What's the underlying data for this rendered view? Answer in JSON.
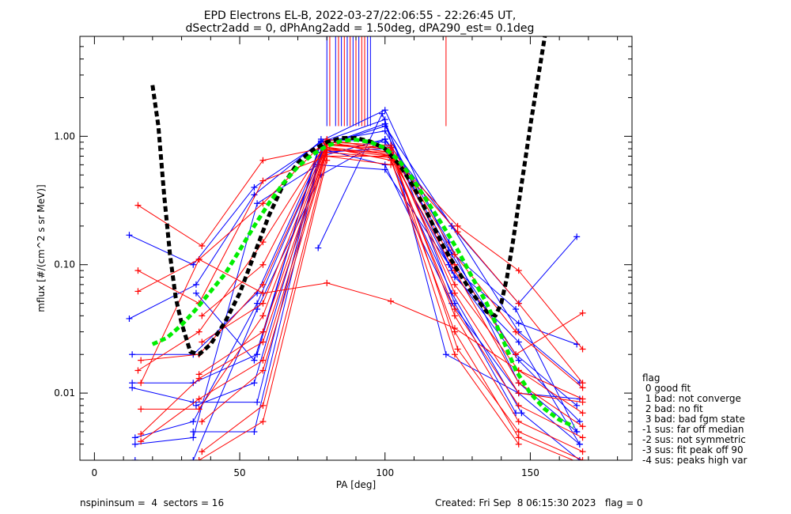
{
  "title_line1": "EPD Electrons EL-B, 2022-03-27/22:06:55 - 22:26:45 UT,",
  "title_line2": "dSectr2add = 0, dPhAng2add = 1.50deg, dPA290_est=   0.1deg",
  "footer": {
    "left": "nspininsum =  4  sectors = 16",
    "right": "Created: Fri Sep  8 06:15:30 2023   flag = 0"
  },
  "legend": {
    "title": "flag",
    "items": [
      " 0 good fit",
      " 1 bad: not converge",
      " 2 bad: no fit",
      " 3 bad: bad fgm state",
      "-1 sus: far off median",
      "-2 sus: not symmetric",
      "-3 sus: fit peak off 90",
      "-4 sus: peaks high var"
    ]
  },
  "chart_data": {
    "type": "line",
    "xlabel": "PA [deg]",
    "ylabel": "mflux [#/(cm^2 s sr MeV)]",
    "xlim": [
      -5,
      185
    ],
    "ylim": [
      0.003,
      6.0
    ],
    "ylog": true,
    "x_ticks": [
      0,
      50,
      100,
      150
    ],
    "y_ticks": [
      {
        "value": 0.01,
        "label": "0.01"
      },
      {
        "value": 0.1,
        "label": "0.10"
      },
      {
        "value": 1.0,
        "label": "1.00"
      }
    ],
    "colors": {
      "red": "#ff0000",
      "blue": "#0000ff",
      "green": "#00ee00",
      "black": "#000000"
    },
    "marker_lines": {
      "y_bottom": 1.2,
      "red_x": [
        81,
        84,
        86,
        88,
        90,
        92,
        93,
        121
      ],
      "blue_x": [
        80,
        83,
        85,
        87,
        89,
        91,
        94,
        95
      ]
    },
    "series": [
      {
        "color": "blue",
        "x": [
          12,
          34,
          55,
          78,
          100,
          122,
          146,
          166
        ],
        "y": [
          0.17,
          0.1,
          0.4,
          0.9,
          1.1,
          0.15,
          0.012,
          0.005
        ]
      },
      {
        "color": "blue",
        "x": [
          12,
          35,
          55,
          78,
          100,
          123,
          145,
          166
        ],
        "y": [
          0.038,
          0.07,
          0.35,
          0.92,
          1.6,
          0.12,
          0.02,
          0.008
        ]
      },
      {
        "color": "blue",
        "x": [
          13,
          34,
          56,
          79,
          100,
          123,
          146,
          167
        ],
        "y": [
          0.02,
          0.02,
          0.06,
          0.85,
          1.2,
          0.2,
          0.03,
          0.012
        ]
      },
      {
        "color": "blue",
        "x": [
          13,
          34,
          56,
          78,
          100,
          123,
          146,
          167
        ],
        "y": [
          0.012,
          0.012,
          0.02,
          0.95,
          0.9,
          0.09,
          0.018,
          0.006
        ]
      },
      {
        "color": "blue",
        "x": [
          13,
          34,
          56,
          78,
          100,
          123,
          146,
          167
        ],
        "y": [
          0.011,
          0.0085,
          0.0085,
          0.8,
          0.6,
          0.05,
          0.01,
          0.004
        ]
      },
      {
        "color": "blue",
        "x": [
          14,
          34,
          56,
          78,
          100,
          123,
          146,
          166
        ],
        "y": [
          0.0045,
          0.006,
          0.05,
          0.7,
          0.95,
          0.2,
          0.05,
          0.165
        ]
      },
      {
        "color": "blue",
        "x": [
          14,
          34,
          56,
          77,
          100,
          122,
          146,
          166
        ],
        "y": [
          0.004,
          0.0045,
          0.3,
          0.6,
          0.55,
          0.1,
          0.035,
          0.024
        ]
      },
      {
        "color": "blue",
        "x": [
          14,
          34,
          56,
          78,
          100,
          122,
          145,
          166
        ],
        "y": [
          0.003,
          0.003,
          0.045,
          0.5,
          0.95,
          0.13,
          0.045,
          0.005
        ]
      },
      {
        "color": "blue",
        "x": [
          77,
          99,
          124,
          145
        ],
        "y": [
          0.135,
          1.5,
          0.05,
          0.007
        ]
      },
      {
        "color": "blue",
        "x": [
          35,
          55,
          78,
          100,
          121,
          146,
          167
        ],
        "y": [
          0.06,
          0.018,
          0.9,
          1.35,
          0.02,
          0.01,
          0.009
        ]
      },
      {
        "color": "blue",
        "x": [
          35,
          55,
          79,
          100,
          124,
          146,
          167
        ],
        "y": [
          0.008,
          0.012,
          0.85,
          1.25,
          0.08,
          0.025,
          0.004
        ]
      },
      {
        "color": "blue",
        "x": [
          34,
          55,
          78,
          100,
          123,
          147,
          167
        ],
        "y": [
          0.005,
          0.005,
          0.75,
          0.8,
          0.06,
          0.007,
          0.003
        ]
      },
      {
        "color": "red",
        "x": [
          15,
          37,
          58,
          80,
          102,
          125,
          146,
          168
        ],
        "y": [
          0.29,
          0.14,
          0.65,
          0.82,
          0.72,
          0.2,
          0.09,
          0.022
        ]
      },
      {
        "color": "red",
        "x": [
          15,
          36,
          58,
          80,
          102,
          125,
          146,
          168
        ],
        "y": [
          0.09,
          0.05,
          0.45,
          0.7,
          0.7,
          0.18,
          0.05,
          0.012
        ]
      },
      {
        "color": "red",
        "x": [
          15,
          36,
          58,
          80,
          102,
          124,
          145,
          168
        ],
        "y": [
          0.062,
          0.11,
          0.3,
          0.95,
          0.78,
          0.1,
          0.02,
          0.042
        ]
      },
      {
        "color": "red",
        "x": [
          15,
          36,
          58,
          80,
          102,
          124,
          145,
          168
        ],
        "y": [
          0.015,
          0.03,
          0.15,
          0.9,
          0.85,
          0.12,
          0.03,
          0.011
        ]
      },
      {
        "color": "red",
        "x": [
          16,
          36,
          58,
          80,
          102,
          124,
          146,
          168
        ],
        "y": [
          0.018,
          0.02,
          0.07,
          0.88,
          0.75,
          0.07,
          0.015,
          0.009
        ]
      },
      {
        "color": "red",
        "x": [
          16,
          36,
          58,
          80,
          102,
          124,
          146,
          168
        ],
        "y": [
          0.0075,
          0.0075,
          0.04,
          0.85,
          0.8,
          0.06,
          0.01,
          0.0085
        ]
      },
      {
        "color": "red",
        "x": [
          16,
          36,
          58,
          80,
          102,
          124,
          146,
          168
        ],
        "y": [
          0.0048,
          0.013,
          0.025,
          0.8,
          0.7,
          0.045,
          0.008,
          0.0045
        ]
      },
      {
        "color": "red",
        "x": [
          16,
          36,
          58,
          80,
          102,
          124,
          146,
          168
        ],
        "y": [
          0.0042,
          0.009,
          0.018,
          0.78,
          0.75,
          0.04,
          0.006,
          0.0035
        ]
      },
      {
        "color": "red",
        "x": [
          37,
          58,
          80,
          102,
          124,
          146,
          168
        ],
        "y": [
          0.04,
          0.1,
          0.92,
          0.7,
          0.09,
          0.012,
          0.0055
        ]
      },
      {
        "color": "red",
        "x": [
          37,
          58,
          80,
          102,
          125,
          146,
          168
        ],
        "y": [
          0.025,
          0.05,
          0.87,
          0.82,
          0.022,
          0.005,
          0.003
        ]
      },
      {
        "color": "red",
        "x": [
          36,
          58,
          80,
          102,
          124,
          146,
          168
        ],
        "y": [
          0.014,
          0.03,
          0.82,
          0.65,
          0.03,
          0.0045,
          0.0028
        ]
      },
      {
        "color": "red",
        "x": [
          37,
          58,
          80,
          102,
          124,
          146
        ],
        "y": [
          0.006,
          0.015,
          0.75,
          0.68,
          0.02,
          0.004
        ]
      },
      {
        "color": "red",
        "x": [
          37,
          58,
          80,
          102
        ],
        "y": [
          0.0035,
          0.008,
          0.7,
          0.6
        ]
      },
      {
        "color": "red",
        "x": [
          36,
          58,
          80
        ],
        "y": [
          0.003,
          0.006,
          0.65
        ]
      },
      {
        "color": "red",
        "x": [
          16,
          36,
          58,
          80,
          102,
          124,
          146,
          168
        ],
        "y": [
          0.012,
          0.11,
          0.06,
          0.072,
          0.052,
          0.032,
          0.015,
          0.007
        ]
      }
    ],
    "fits": [
      {
        "color": "black",
        "x": [
          20,
          22,
          24,
          26,
          28,
          30,
          33,
          36,
          40,
          45,
          50,
          55,
          60,
          65,
          70,
          75,
          80,
          85,
          90,
          95,
          100,
          105,
          110,
          115,
          120,
          125,
          130,
          135,
          138,
          140,
          142,
          144,
          146,
          148,
          150,
          152,
          155
        ],
        "y": [
          2.5,
          1.2,
          0.35,
          0.12,
          0.055,
          0.035,
          0.021,
          0.02,
          0.024,
          0.036,
          0.06,
          0.12,
          0.24,
          0.42,
          0.62,
          0.78,
          0.9,
          0.97,
          0.97,
          0.91,
          0.8,
          0.6,
          0.4,
          0.24,
          0.14,
          0.09,
          0.06,
          0.043,
          0.04,
          0.05,
          0.08,
          0.15,
          0.3,
          0.6,
          1.2,
          2.3,
          6.0
        ]
      },
      {
        "color": "green",
        "x": [
          20,
          25,
          30,
          35,
          40,
          45,
          50,
          55,
          60,
          65,
          70,
          75,
          80,
          85,
          90,
          95,
          100,
          105,
          110,
          115,
          120,
          125,
          130,
          135,
          140,
          145,
          150,
          155,
          160,
          165
        ],
        "y": [
          0.024,
          0.027,
          0.034,
          0.045,
          0.062,
          0.085,
          0.13,
          0.2,
          0.3,
          0.43,
          0.58,
          0.72,
          0.84,
          0.92,
          0.94,
          0.9,
          0.81,
          0.64,
          0.45,
          0.3,
          0.2,
          0.13,
          0.08,
          0.05,
          0.028,
          0.015,
          0.01,
          0.0075,
          0.0062,
          0.0055
        ]
      }
    ]
  }
}
